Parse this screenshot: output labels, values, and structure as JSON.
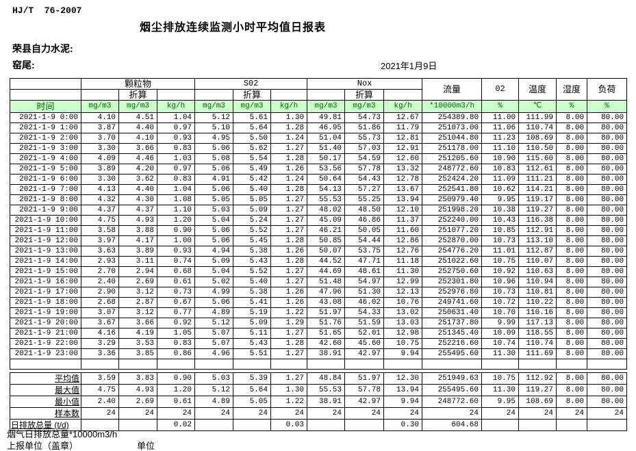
{
  "page": {
    "standard_no": "HJ/T  76-2007",
    "title": "烟尘排放连续监测小时平均值日报表",
    "company": "荣县自力水泥:",
    "location": "窑尾:",
    "date": "2021年1月9日"
  },
  "table": {
    "time_label": "时间",
    "converted_label": "折算",
    "groups": {
      "pm": "颗粒物",
      "so2": "S02",
      "nox": "Nox",
      "flow": "流量",
      "o2": "02",
      "temp": "温度",
      "humidity": "湿度",
      "load": "负荷"
    },
    "units": [
      "mg/m3",
      "mg/m3",
      "kg/h",
      "mg/m3",
      "mg/m3",
      "kg/h",
      "mg/m3",
      "mg/m3",
      "kg/h",
      "*10000m3/h",
      "%",
      "℃",
      "%",
      "%"
    ],
    "rows": [
      [
        "2021-1-9 0:00",
        "4.10",
        "4.51",
        "1.04",
        "5.12",
        "5.61",
        "1.30",
        "49.81",
        "54.73",
        "12.67",
        "254389.80",
        "11.00",
        "111.99",
        "8.00",
        "80.00"
      ],
      [
        "2021-1-9 1:00",
        "3.87",
        "4.40",
        "0.97",
        "5.10",
        "5.64",
        "1.28",
        "46.95",
        "51.86",
        "11.79",
        "251073.00",
        "11.06",
        "110.74",
        "8.00",
        "80.00"
      ],
      [
        "2021-1-9 2:00",
        "3.70",
        "4.10",
        "0.93",
        "4.95",
        "5.50",
        "1.24",
        "51.04",
        "55.73",
        "12.81",
        "251044.80",
        "11.23",
        "108.69",
        "8.00",
        "80.00"
      ],
      [
        "2021-1-9 3:00",
        "3.30",
        "3.66",
        "0.83",
        "5.06",
        "5.62",
        "1.27",
        "51.40",
        "57.03",
        "12.91",
        "251178.00",
        "11.10",
        "110.50",
        "8.00",
        "80.00"
      ],
      [
        "2021-1-9 4:00",
        "4.09",
        "4.46",
        "1.03",
        "5.08",
        "5.54",
        "1.28",
        "50.17",
        "54.59",
        "12.60",
        "251205.60",
        "10.90",
        "115.60",
        "8.00",
        "80.00"
      ],
      [
        "2021-1-9 5:00",
        "3.89",
        "4.20",
        "0.97",
        "5.06",
        "5.49",
        "1.26",
        "53.56",
        "57.78",
        "13.32",
        "248772.60",
        "10.83",
        "112.61",
        "8.00",
        "80.00"
      ],
      [
        "2021-1-9 6:00",
        "3.30",
        "3.62",
        "0.83",
        "4.91",
        "5.42",
        "1.24",
        "50.64",
        "54.43",
        "12.78",
        "252424.20",
        "11.09",
        "111.21",
        "8.00",
        "80.00"
      ],
      [
        "2021-1-9 7:00",
        "4.13",
        "4.40",
        "1.04",
        "5.06",
        "5.40",
        "1.28",
        "54.13",
        "57.27",
        "13.67",
        "252541.80",
        "10.62",
        "114.21",
        "8.00",
        "80.00"
      ],
      [
        "2021-1-9 8:00",
        "4.32",
        "4.30",
        "1.08",
        "5.05",
        "5.05",
        "1.27",
        "55.53",
        "55.25",
        "13.94",
        "250979.40",
        "9.95",
        "119.17",
        "8.00",
        "80.00"
      ],
      [
        "2021-1-9 9:00",
        "4.37",
        "4.37",
        "1.10",
        "5.03",
        "5.09",
        "1.27",
        "48.02",
        "48.50",
        "12.10",
        "251998.20",
        "10.38",
        "119.27",
        "8.00",
        "80.00"
      ],
      [
        "2021-1-9 10:00",
        "4.75",
        "4.93",
        "1.20",
        "5.04",
        "5.24",
        "1.27",
        "45.09",
        "46.86",
        "11.37",
        "252240.00",
        "10.43",
        "116.38",
        "8.00",
        "80.00"
      ],
      [
        "2021-1-9 11:00",
        "3.58",
        "3.88",
        "0.90",
        "5.06",
        "5.52",
        "1.27",
        "46.21",
        "50.05",
        "11.60",
        "251077.20",
        "10.85",
        "112.91",
        "8.00",
        "80.00"
      ],
      [
        "2021-1-9 12:00",
        "3.97",
        "4.17",
        "1.00",
        "5.06",
        "5.45",
        "1.28",
        "50.85",
        "54.44",
        "12.86",
        "252870.00",
        "10.73",
        "113.10",
        "8.00",
        "80.00"
      ],
      [
        "2021-1-9 13:00",
        "3.63",
        "3.89",
        "0.93",
        "4.94",
        "5.38",
        "1.26",
        "50.07",
        "53.75",
        "12.76",
        "254776.20",
        "11.01",
        "112.87",
        "8.00",
        "80.00"
      ],
      [
        "2021-1-9 14:00",
        "2.93",
        "3.11",
        "0.74",
        "5.09",
        "5.43",
        "1.28",
        "44.52",
        "47.71",
        "11.18",
        "251022.60",
        "10.75",
        "110.07",
        "8.00",
        "80.00"
      ],
      [
        "2021-1-9 15:00",
        "2.70",
        "2.94",
        "0.68",
        "5.04",
        "5.52",
        "1.27",
        "44.69",
        "48.61",
        "11.30",
        "252750.60",
        "10.92",
        "110.63",
        "8.00",
        "80.00"
      ],
      [
        "2021-1-9 16:00",
        "2.40",
        "2.69",
        "0.61",
        "5.02",
        "5.40",
        "1.27",
        "51.48",
        "54.97",
        "12.99",
        "252301.80",
        "10.96",
        "110.94",
        "8.00",
        "80.00"
      ],
      [
        "2021-1-9 17:00",
        "2.90",
        "3.12",
        "0.73",
        "4.99",
        "5.38",
        "1.26",
        "47.96",
        "51.30",
        "12.13",
        "252976.80",
        "10.73",
        "110.81",
        "8.00",
        "80.00"
      ],
      [
        "2021-1-9 18:00",
        "2.68",
        "2.87",
        "0.67",
        "5.06",
        "5.41",
        "1.26",
        "43.08",
        "46.02",
        "10.76",
        "249741.60",
        "10.72",
        "110.22",
        "8.00",
        "80.00"
      ],
      [
        "2021-1-9 19:00",
        "3.07",
        "3.12",
        "0.77",
        "4.89",
        "5.19",
        "1.22",
        "51.97",
        "54.33",
        "13.02",
        "250631.40",
        "10.70",
        "110.16",
        "8.00",
        "80.00"
      ],
      [
        "2021-1-9 20:00",
        "3.67",
        "3.66",
        "0.92",
        "5.12",
        "5.09",
        "1.29",
        "51.76",
        "51.59",
        "13.03",
        "251737.80",
        "9.99",
        "117.13",
        "8.00",
        "80.00"
      ],
      [
        "2021-1-9 21:00",
        "4.16",
        "4.19",
        "1.05",
        "5.07",
        "5.11",
        "1.27",
        "51.65",
        "52.01",
        "12.98",
        "251345.40",
        "10.09",
        "118.55",
        "8.00",
        "80.00"
      ],
      [
        "2021-1-9 22:00",
        "3.29",
        "3.53",
        "0.83",
        "5.07",
        "5.43",
        "1.28",
        "42.60",
        "45.60",
        "10.75",
        "252216.60",
        "10.74",
        "110.74",
        "8.00",
        "80.00"
      ],
      [
        "2021-1-9 23:00",
        "3.36",
        "3.85",
        "0.86",
        "4.96",
        "5.51",
        "1.27",
        "38.91",
        "42.97",
        "9.94",
        "255495.60",
        "11.30",
        "111.69",
        "8.00",
        "80.00"
      ]
    ],
    "summary": [
      {
        "label": "平均值",
        "values": [
          "3.59",
          "3.83",
          "0.90",
          "5.03",
          "5.39",
          "1.27",
          "48.84",
          "51.97",
          "12.30",
          "251949.63",
          "10.75",
          "112.92",
          "8.00",
          "80.00"
        ]
      },
      {
        "label": "最大值",
        "values": [
          "4.75",
          "4.93",
          "1.20",
          "5.12",
          "5.64",
          "1.30",
          "55.53",
          "57.78",
          "13.94",
          "255495.60",
          "11.30",
          "119.27",
          "8.00",
          "80.00"
        ]
      },
      {
        "label": "最小值",
        "values": [
          "2.40",
          "2.69",
          "0.61",
          "4.89",
          "5.05",
          "1.22",
          "38.91",
          "42.97",
          "9.94",
          "248772.60",
          "9.95",
          "108.69",
          "8.00",
          "80.00"
        ]
      },
      {
        "label": "样本数",
        "values": [
          "24",
          "24",
          "24",
          "24",
          "24",
          "24",
          "24",
          "24",
          "24",
          "24",
          "24",
          "24",
          "24",
          "24"
        ]
      }
    ],
    "total_row": {
      "label": "日排放总量 (t/d)",
      "values": [
        "",
        "",
        "0.02",
        "",
        "",
        "0.03",
        "",
        "",
        "0.30",
        "604.68",
        "",
        "",
        "",
        ""
      ]
    }
  },
  "footer": {
    "flow_total_note": "烟气日排放总量*10000m3/h",
    "report_unit_label": "上报单位（盖章）",
    "unit_label": "单位"
  },
  "colors": {
    "header_bg": "#ccffcc",
    "header_text": "#006600",
    "border": "#000000"
  }
}
